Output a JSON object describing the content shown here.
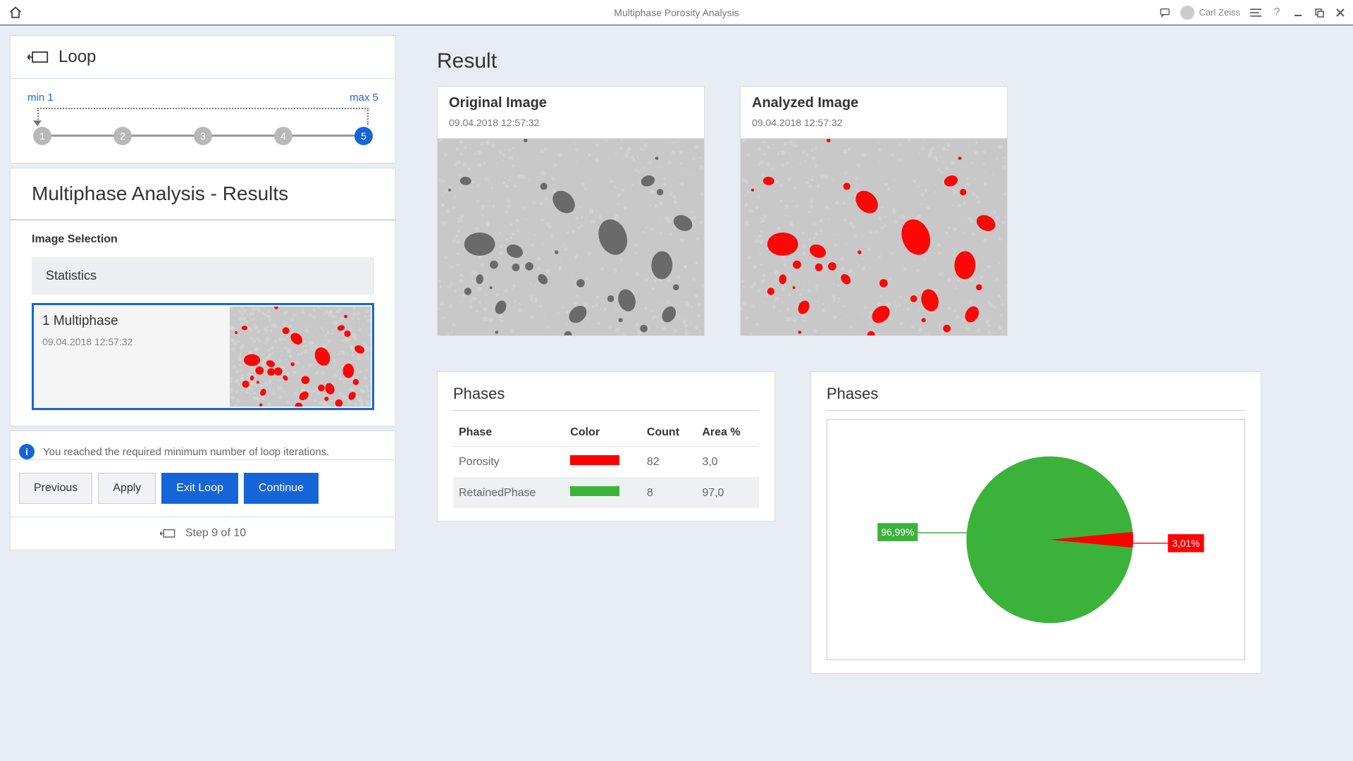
{
  "app": {
    "title": "Multiphase Porosity Analysis"
  },
  "user": {
    "name": "Carl Zeiss"
  },
  "sidebar": {
    "loop_title": "Loop",
    "min_label": "min 1",
    "max_label": "max 5",
    "stepper": {
      "steps": [
        "1",
        "2",
        "3",
        "4",
        "5"
      ],
      "active_index": 4
    },
    "results_title": "Multiphase Analysis - Results",
    "image_selection_label": "Image Selection",
    "statistics_label": "Statistics",
    "selected_image": {
      "name": "1 Multiphase",
      "timestamp": "09.04.2018 12:57:32"
    },
    "info_message": "You reached the required minimum number of loop iterations.",
    "buttons": {
      "previous": "Previous",
      "apply": "Apply",
      "exit_loop": "Exit Loop",
      "continue": "Continue"
    },
    "step_footer": "Step 9 of 10"
  },
  "result": {
    "heading": "Result",
    "original": {
      "title": "Original Image",
      "timestamp": "09.04.2018 12:57:32"
    },
    "analyzed": {
      "title": "Analyzed Image",
      "timestamp": "09.04.2018 12:57:32"
    }
  },
  "phases_table": {
    "title": "Phases",
    "columns": [
      "Phase",
      "Color",
      "Count",
      "Area %"
    ],
    "rows": [
      {
        "phase": "Porosity",
        "color": "#ff0000",
        "count": "82",
        "area": "3,0"
      },
      {
        "phase": "RetainedPhase",
        "color": "#3bb33b",
        "count": "8",
        "area": "97,0"
      }
    ]
  },
  "phases_chart": {
    "title": "Phases",
    "type": "pie",
    "slices": [
      {
        "label": "96,99%",
        "value": 96.99,
        "color": "#3bb33b"
      },
      {
        "label": "3,01%",
        "value": 3.01,
        "color": "#ff0000"
      }
    ],
    "background": "#ffffff",
    "border_color": "#cccccc"
  },
  "texture": {
    "bg": "#c8c8c8",
    "blob": "#6a6a6a",
    "highlight": "#ff0505"
  }
}
